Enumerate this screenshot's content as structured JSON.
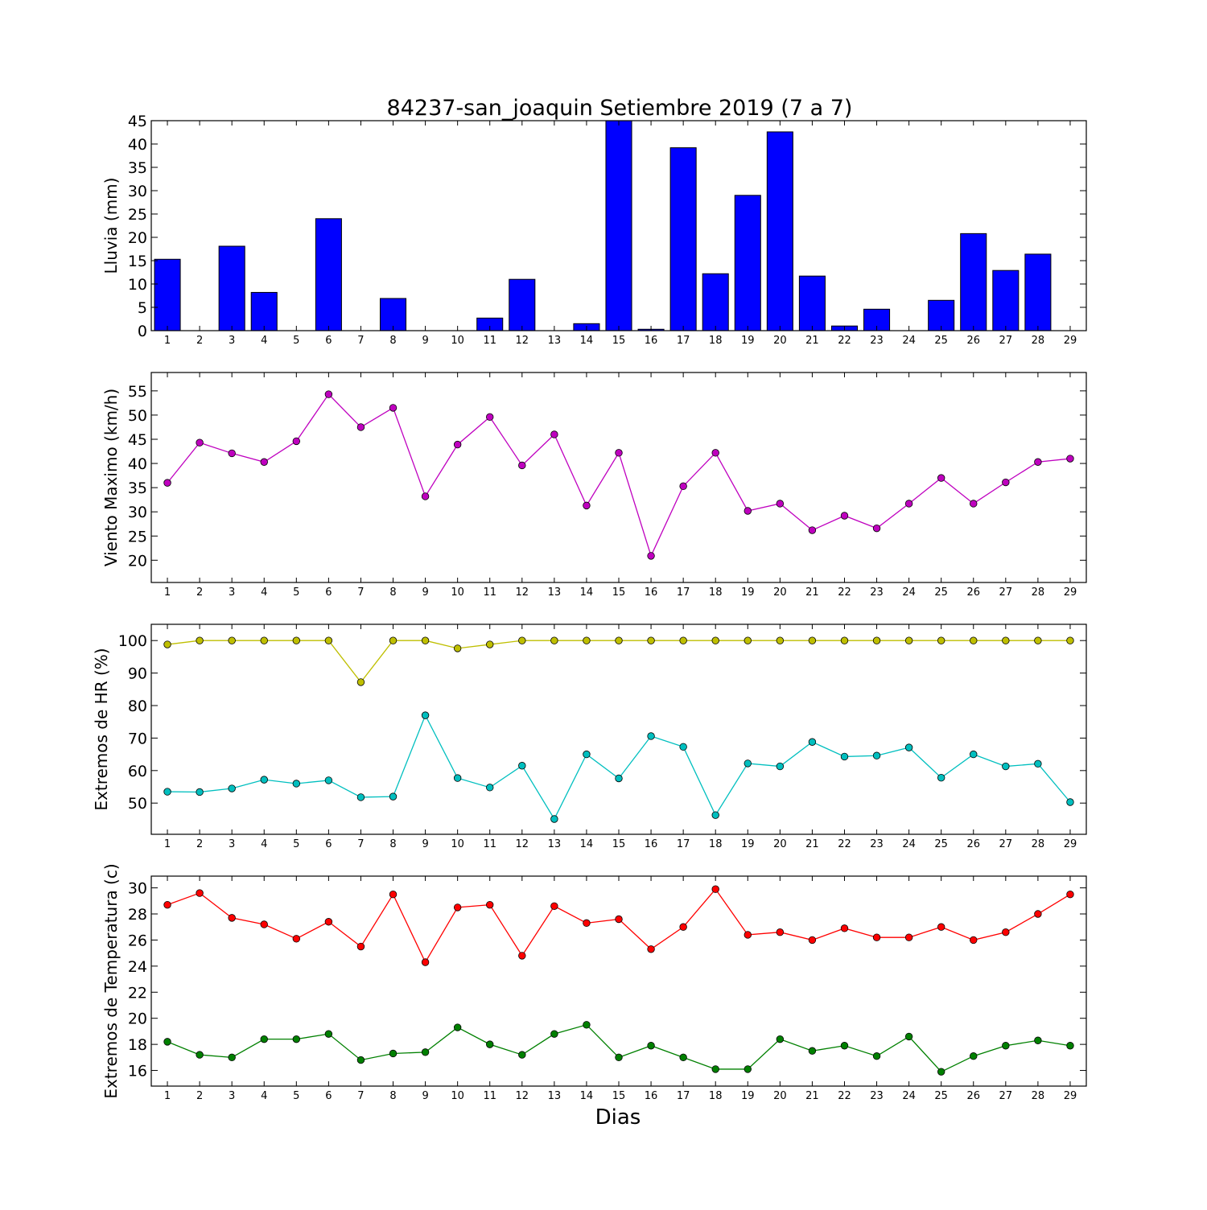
{
  "title": "84237-san_joaquin Setiembre 2019  (7 a 7)",
  "xlabel": "Dias",
  "chart_data": [
    {
      "type": "bar",
      "ylabel": "Lluvia (mm)",
      "x": [
        1,
        2,
        3,
        4,
        5,
        6,
        7,
        8,
        9,
        10,
        11,
        12,
        13,
        14,
        15,
        16,
        17,
        18,
        19,
        20,
        21,
        22,
        23,
        24,
        25,
        26,
        27,
        28,
        29
      ],
      "ylim": [
        0,
        45
      ],
      "yticks": [
        0,
        5,
        10,
        15,
        20,
        25,
        30,
        35,
        40,
        45
      ],
      "series": [
        {
          "color": "#0000ff",
          "values": [
            15.3,
            0,
            18.1,
            8.2,
            0,
            24.0,
            0,
            6.9,
            0,
            0,
            2.7,
            11.0,
            0,
            1.5,
            45.0,
            0.3,
            39.2,
            12.2,
            29.0,
            42.6,
            11.7,
            1.0,
            4.6,
            0,
            6.5,
            20.8,
            12.9,
            16.4,
            0
          ]
        }
      ]
    },
    {
      "type": "line",
      "ylabel": "Viento Maximo (km/h)",
      "x": [
        1,
        2,
        3,
        4,
        5,
        6,
        7,
        8,
        9,
        10,
        11,
        12,
        13,
        14,
        15,
        16,
        17,
        18,
        19,
        20,
        21,
        22,
        23,
        24,
        25,
        26,
        27,
        28,
        29
      ],
      "ylim": [
        15.4,
        58.8
      ],
      "yticks": [
        20,
        25,
        30,
        35,
        40,
        45,
        50,
        55
      ],
      "series": [
        {
          "color": "#bf00bf",
          "values": [
            36.0,
            44.3,
            42.1,
            40.3,
            44.6,
            54.3,
            47.5,
            51.5,
            33.2,
            43.9,
            49.6,
            39.6,
            46.0,
            31.3,
            42.2,
            20.9,
            35.3,
            42.2,
            30.2,
            31.7,
            26.2,
            29.2,
            26.6,
            31.7,
            37.0,
            31.7,
            36.1,
            40.3,
            41.0
          ]
        }
      ]
    },
    {
      "type": "line",
      "ylabel": "Extremos de HR (%)",
      "x": [
        1,
        2,
        3,
        4,
        5,
        6,
        7,
        8,
        9,
        10,
        11,
        12,
        13,
        14,
        15,
        16,
        17,
        18,
        19,
        20,
        21,
        22,
        23,
        24,
        25,
        26,
        27,
        28,
        29
      ],
      "ylim": [
        40.4,
        105
      ],
      "yticks": [
        50,
        60,
        70,
        80,
        90,
        100
      ],
      "series": [
        {
          "color": "#bfbf00",
          "values": [
            98.8,
            100,
            100,
            100,
            100,
            100,
            87.2,
            100,
            100,
            97.6,
            98.8,
            100,
            100,
            100,
            100,
            100,
            100,
            100,
            100,
            100,
            100,
            100,
            100,
            100,
            100,
            100,
            100,
            100,
            100
          ]
        },
        {
          "color": "#00bfbf",
          "values": [
            53.5,
            53.4,
            54.5,
            57.2,
            56.0,
            57.0,
            51.8,
            52.0,
            77.0,
            57.7,
            54.8,
            61.5,
            45.1,
            65.0,
            57.6,
            70.6,
            67.3,
            46.3,
            62.2,
            61.3,
            68.8,
            64.3,
            64.6,
            67.1,
            57.8,
            65.0,
            61.3,
            62.1,
            50.3
          ]
        }
      ]
    },
    {
      "type": "line",
      "ylabel": "Extremos de Temperatura (c)",
      "x": [
        1,
        2,
        3,
        4,
        5,
        6,
        7,
        8,
        9,
        10,
        11,
        12,
        13,
        14,
        15,
        16,
        17,
        18,
        19,
        20,
        21,
        22,
        23,
        24,
        25,
        26,
        27,
        28,
        29
      ],
      "ylim": [
        14.8,
        30.9
      ],
      "yticks": [
        16,
        18,
        20,
        22,
        24,
        26,
        28,
        30
      ],
      "series": [
        {
          "color": "#ff0000",
          "values": [
            28.7,
            29.6,
            27.7,
            27.2,
            26.1,
            27.4,
            25.5,
            29.5,
            24.3,
            28.5,
            28.7,
            24.8,
            28.6,
            27.3,
            27.6,
            25.3,
            27.0,
            29.9,
            26.4,
            26.6,
            26.0,
            26.9,
            26.2,
            26.2,
            27.0,
            26.0,
            26.6,
            28.0,
            29.5
          ]
        },
        {
          "color": "#008000",
          "values": [
            18.2,
            17.2,
            17.0,
            18.4,
            18.4,
            18.8,
            16.8,
            17.3,
            17.4,
            19.3,
            18.0,
            17.2,
            18.8,
            19.5,
            17.0,
            17.9,
            17.0,
            16.1,
            16.1,
            18.4,
            17.5,
            17.9,
            17.1,
            18.6,
            15.9,
            17.1,
            17.9,
            18.3,
            17.9
          ]
        }
      ]
    }
  ]
}
